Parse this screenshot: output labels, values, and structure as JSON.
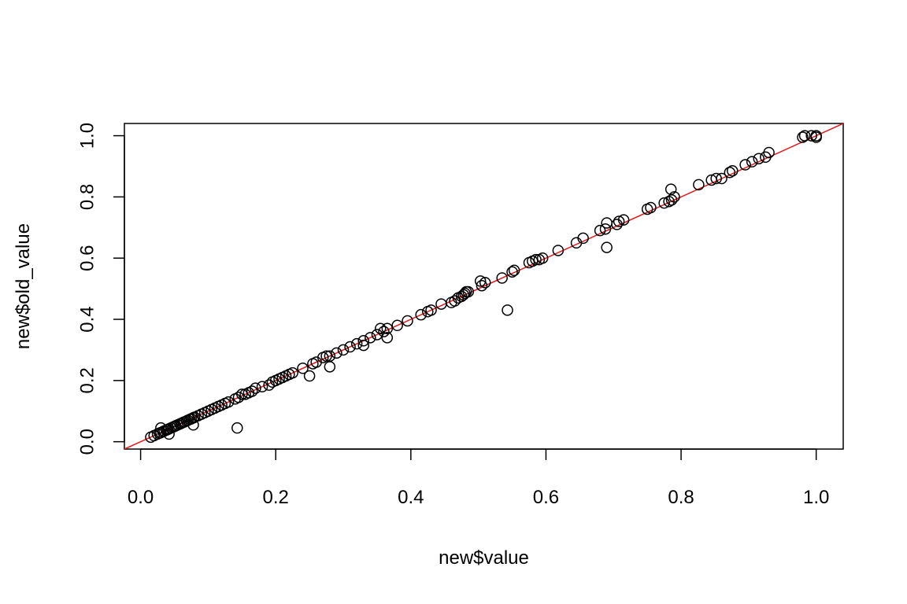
{
  "chart_data": {
    "type": "scatter",
    "xlabel": "new$value",
    "ylabel": "new$old_value",
    "xlim": [
      -0.024,
      1.04
    ],
    "ylim": [
      -0.024,
      1.04
    ],
    "x_ticks": [
      "0.0",
      "0.2",
      "0.4",
      "0.6",
      "0.8",
      "1.0"
    ],
    "y_ticks": [
      "0.0",
      "0.2",
      "0.4",
      "0.6",
      "0.8",
      "1.0"
    ],
    "grid": false,
    "reference_line": {
      "intercept": 0,
      "slope": 1,
      "color": "#e41a1c"
    },
    "marker": {
      "shape": "open-circle",
      "color": "#000000"
    },
    "x": [
      0.015,
      0.02,
      0.025,
      0.028,
      0.03,
      0.033,
      0.035,
      0.038,
      0.04,
      0.042,
      0.045,
      0.048,
      0.05,
      0.052,
      0.055,
      0.058,
      0.06,
      0.063,
      0.065,
      0.068,
      0.07,
      0.073,
      0.075,
      0.078,
      0.08,
      0.085,
      0.09,
      0.095,
      0.1,
      0.105,
      0.11,
      0.115,
      0.12,
      0.125,
      0.13,
      0.14,
      0.145,
      0.15,
      0.155,
      0.16,
      0.165,
      0.17,
      0.18,
      0.19,
      0.195,
      0.2,
      0.205,
      0.21,
      0.215,
      0.22,
      0.225,
      0.24,
      0.255,
      0.26,
      0.27,
      0.275,
      0.28,
      0.29,
      0.3,
      0.31,
      0.32,
      0.33,
      0.34,
      0.35,
      0.355,
      0.36,
      0.365,
      0.38,
      0.395,
      0.415,
      0.425,
      0.43,
      0.445,
      0.46,
      0.465,
      0.47,
      0.475,
      0.478,
      0.48,
      0.482,
      0.485,
      0.503,
      0.505,
      0.51,
      0.535,
      0.55,
      0.553,
      0.575,
      0.58,
      0.585,
      0.59,
      0.595,
      0.618,
      0.645,
      0.655,
      0.68,
      0.688,
      0.69,
      0.705,
      0.708,
      0.715,
      0.75,
      0.755,
      0.775,
      0.782,
      0.786,
      0.79,
      0.826,
      0.845,
      0.852,
      0.86,
      0.872,
      0.876,
      0.895,
      0.905,
      0.915,
      0.925,
      0.93,
      0.98,
      0.983,
      0.993,
      1.0,
      1.0,
      0.03,
      0.042,
      0.078,
      0.143,
      0.25,
      0.28,
      0.33,
      0.365,
      0.543,
      0.69,
      0.785
    ],
    "y": [
      0.015,
      0.02,
      0.025,
      0.028,
      0.03,
      0.033,
      0.035,
      0.038,
      0.04,
      0.042,
      0.045,
      0.048,
      0.05,
      0.052,
      0.055,
      0.058,
      0.06,
      0.063,
      0.065,
      0.068,
      0.07,
      0.073,
      0.075,
      0.078,
      0.08,
      0.085,
      0.09,
      0.095,
      0.1,
      0.105,
      0.11,
      0.115,
      0.12,
      0.125,
      0.13,
      0.14,
      0.145,
      0.155,
      0.155,
      0.16,
      0.165,
      0.175,
      0.18,
      0.185,
      0.195,
      0.2,
      0.205,
      0.21,
      0.215,
      0.22,
      0.225,
      0.24,
      0.255,
      0.26,
      0.275,
      0.28,
      0.28,
      0.29,
      0.3,
      0.31,
      0.32,
      0.33,
      0.34,
      0.35,
      0.37,
      0.36,
      0.37,
      0.38,
      0.395,
      0.415,
      0.425,
      0.43,
      0.45,
      0.455,
      0.46,
      0.47,
      0.475,
      0.48,
      0.485,
      0.49,
      0.49,
      0.525,
      0.51,
      0.52,
      0.535,
      0.555,
      0.56,
      0.585,
      0.59,
      0.595,
      0.595,
      0.6,
      0.625,
      0.65,
      0.665,
      0.69,
      0.695,
      0.715,
      0.71,
      0.72,
      0.725,
      0.76,
      0.765,
      0.78,
      0.785,
      0.79,
      0.8,
      0.84,
      0.855,
      0.86,
      0.86,
      0.88,
      0.885,
      0.905,
      0.915,
      0.925,
      0.93,
      0.945,
      0.995,
      1.0,
      1.0,
      1.0,
      0.995,
      0.045,
      0.025,
      0.055,
      0.045,
      0.215,
      0.245,
      0.315,
      0.34,
      0.43,
      0.635,
      0.825
    ]
  }
}
